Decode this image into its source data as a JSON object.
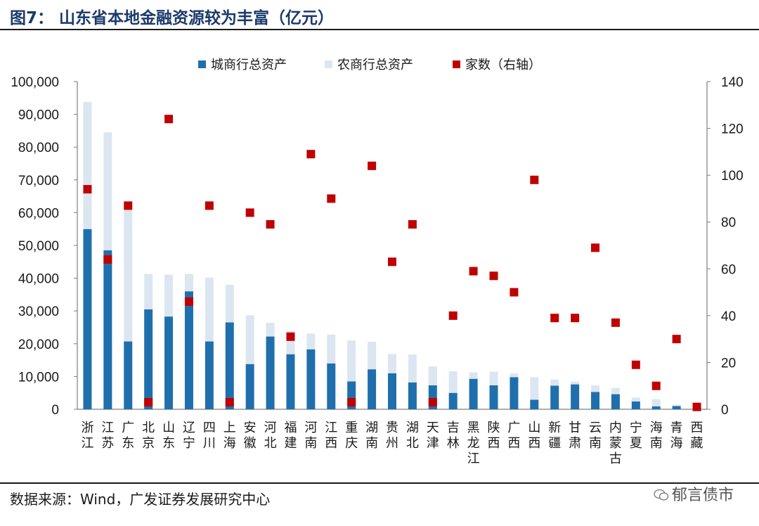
{
  "header": {
    "title": "图7：  山东省本地金融资源较为丰富（亿元）"
  },
  "footer": {
    "source": "数据来源：Wind，广发证券发展研究中心",
    "watermark": "郁言债市"
  },
  "colors": {
    "city_bank": "#1f6fad",
    "rural_bank": "#dce6f1",
    "count": "#c00000"
  },
  "chart_data": {
    "type": "bar",
    "stacked": true,
    "title": "山东省本地金融资源较为丰富（亿元）",
    "categories": [
      "浙江",
      "江苏",
      "广东",
      "北京",
      "山东",
      "辽宁",
      "四川",
      "上海",
      "安徽",
      "河北",
      "福建",
      "河南",
      "江西",
      "重庆",
      "湖南",
      "贵州",
      "湖北",
      "天津",
      "吉林",
      "黑龙江",
      "陕西",
      "广西",
      "山西",
      "新疆",
      "甘肃",
      "云南",
      "内蒙古",
      "宁夏",
      "海南",
      "青海",
      "西藏"
    ],
    "series": [
      {
        "name": "城商行总资产",
        "axis": "left",
        "type": "bar",
        "values": [
          55000,
          48500,
          20700,
          30500,
          28300,
          36000,
          20700,
          26500,
          13800,
          22200,
          16800,
          18300,
          14000,
          8500,
          12200,
          11000,
          8200,
          7300,
          5000,
          9300,
          7300,
          9800,
          2900,
          7200,
          7600,
          5300,
          4600,
          2400,
          900,
          1000,
          0
        ]
      },
      {
        "name": "农商行总资产",
        "axis": "left",
        "type": "bar",
        "values": [
          38800,
          36000,
          40500,
          10800,
          12800,
          5300,
          19500,
          11500,
          14900,
          4200,
          7100,
          4800,
          8800,
          12500,
          8400,
          5900,
          8500,
          5800,
          6600,
          2000,
          4200,
          1200,
          6900,
          1900,
          800,
          2000,
          1900,
          1200,
          2200,
          400,
          0
        ]
      },
      {
        "name": "家数（右轴）",
        "axis": "right",
        "type": "scatter",
        "values": [
          94,
          64,
          87,
          3,
          124,
          46,
          87,
          3,
          84,
          79,
          31,
          109,
          90,
          3,
          104,
          63,
          79,
          3,
          40,
          59,
          57,
          50,
          98,
          39,
          39,
          69,
          37,
          19,
          10,
          30,
          1
        ]
      }
    ],
    "ylim": [
      0,
      100000
    ],
    "yticks": [
      "0",
      "10,000",
      "20,000",
      "30,000",
      "40,000",
      "50,000",
      "60,000",
      "70,000",
      "80,000",
      "90,000",
      "100,000"
    ],
    "y2lim": [
      0,
      140
    ],
    "y2ticks": [
      "0",
      "20",
      "40",
      "60",
      "80",
      "100",
      "120",
      "140"
    ],
    "legend": {
      "position": "top",
      "items": [
        "城商行总资产",
        "农商行总资产",
        "家数（右轴）"
      ]
    },
    "grid": false
  }
}
